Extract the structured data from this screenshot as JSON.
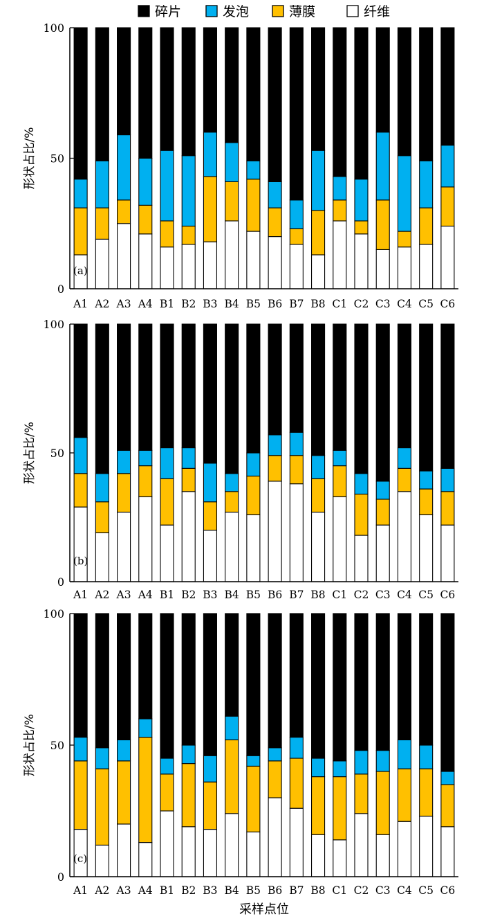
{
  "legend": [
    {
      "label": "碎片",
      "color": "#000000"
    },
    {
      "label": "发泡",
      "color": "#00B0F0"
    },
    {
      "label": "薄膜",
      "color": "#FFC000"
    },
    {
      "label": "纤维",
      "color": "#FFFFFF"
    }
  ],
  "chart_data": [
    {
      "type": "bar",
      "stacked": true,
      "panel_label": "(a)",
      "ylabel": "形状占比/%",
      "xlabel": "",
      "ylim": [
        0,
        100
      ],
      "yticks": [
        "0",
        "50",
        "100"
      ],
      "categories": [
        "A1",
        "A2",
        "A3",
        "A4",
        "B1",
        "B2",
        "B3",
        "B4",
        "B5",
        "B6",
        "B7",
        "B8",
        "C1",
        "C2",
        "C3",
        "C4",
        "C5",
        "C6"
      ],
      "series": [
        {
          "name": "纤维",
          "values": [
            13,
            19,
            25,
            21,
            16,
            17,
            18,
            26,
            22,
            20,
            17,
            13,
            26,
            21,
            15,
            16,
            17,
            24
          ]
        },
        {
          "name": "薄膜",
          "values": [
            18,
            12,
            9,
            11,
            10,
            7,
            25,
            15,
            20,
            11,
            6,
            17,
            8,
            5,
            19,
            6,
            14,
            15
          ]
        },
        {
          "name": "发泡",
          "values": [
            11,
            18,
            25,
            18,
            27,
            27,
            17,
            15,
            7,
            10,
            11,
            23,
            9,
            16,
            26,
            29,
            18,
            16
          ]
        },
        {
          "name": "碎片",
          "values": [
            58,
            51,
            41,
            50,
            47,
            49,
            40,
            44,
            51,
            59,
            66,
            47,
            57,
            58,
            40,
            49,
            51,
            45
          ]
        }
      ]
    },
    {
      "type": "bar",
      "stacked": true,
      "panel_label": "(b)",
      "ylabel": "形状占比/%",
      "xlabel": "",
      "ylim": [
        0,
        100
      ],
      "yticks": [
        "0",
        "50",
        "100"
      ],
      "categories": [
        "A1",
        "A2",
        "A3",
        "A4",
        "B1",
        "B2",
        "B3",
        "B4",
        "B5",
        "B6",
        "B7",
        "B8",
        "C1",
        "C2",
        "C3",
        "C4",
        "C5",
        "C6"
      ],
      "series": [
        {
          "name": "纤维",
          "values": [
            29,
            19,
            27,
            33,
            22,
            35,
            20,
            27,
            26,
            39,
            38,
            27,
            33,
            18,
            22,
            35,
            26,
            22
          ]
        },
        {
          "name": "薄膜",
          "values": [
            13,
            12,
            15,
            12,
            18,
            9,
            11,
            8,
            15,
            10,
            11,
            13,
            12,
            16,
            10,
            9,
            10,
            13
          ]
        },
        {
          "name": "发泡",
          "values": [
            14,
            11,
            9,
            6,
            12,
            8,
            15,
            7,
            9,
            8,
            9,
            9,
            6,
            8,
            7,
            8,
            7,
            9
          ]
        },
        {
          "name": "碎片",
          "values": [
            44,
            58,
            49,
            49,
            48,
            48,
            54,
            58,
            50,
            43,
            42,
            51,
            49,
            58,
            61,
            48,
            57,
            56
          ]
        }
      ]
    },
    {
      "type": "bar",
      "stacked": true,
      "panel_label": "(c)",
      "ylabel": "形状占比/%",
      "xlabel": "采样点位",
      "ylim": [
        0,
        100
      ],
      "yticks": [
        "0",
        "50",
        "100"
      ],
      "categories": [
        "A1",
        "A2",
        "A3",
        "A4",
        "B1",
        "B2",
        "B3",
        "B4",
        "B5",
        "B6",
        "B7",
        "B8",
        "C1",
        "C2",
        "C3",
        "C4",
        "C5",
        "C6"
      ],
      "series": [
        {
          "name": "纤维",
          "values": [
            18,
            12,
            20,
            13,
            25,
            19,
            18,
            24,
            17,
            30,
            26,
            16,
            14,
            24,
            16,
            21,
            23,
            19
          ]
        },
        {
          "name": "薄膜",
          "values": [
            26,
            29,
            24,
            40,
            14,
            24,
            18,
            28,
            25,
            14,
            19,
            22,
            24,
            15,
            24,
            20,
            18,
            16
          ]
        },
        {
          "name": "发泡",
          "values": [
            9,
            8,
            8,
            7,
            6,
            7,
            10,
            9,
            4,
            5,
            8,
            7,
            6,
            9,
            8,
            11,
            9,
            5
          ]
        },
        {
          "name": "碎片",
          "values": [
            47,
            51,
            48,
            40,
            55,
            50,
            54,
            39,
            54,
            51,
            47,
            55,
            56,
            52,
            52,
            48,
            50,
            60
          ]
        }
      ]
    }
  ]
}
